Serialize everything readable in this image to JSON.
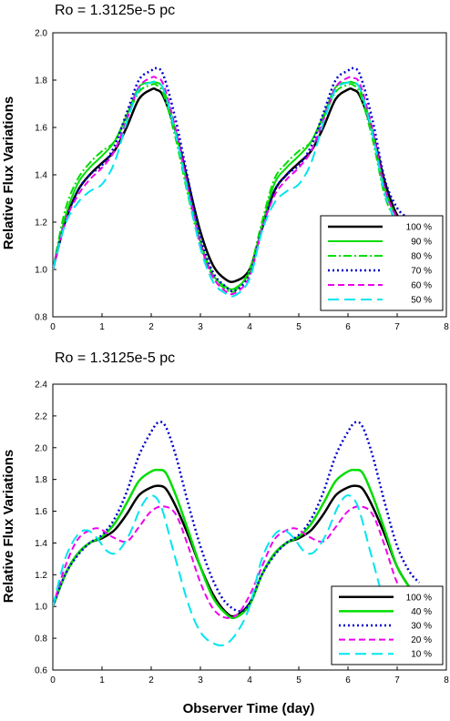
{
  "xlabel": "Observer Time (day)",
  "ylabel": "Relative Flux Variations",
  "chart_data": [
    {
      "type": "line",
      "title": "Ro = 1.3125e-5 pc",
      "xlim": [
        0,
        8
      ],
      "ylim": [
        0.8,
        2.0
      ],
      "xticks": [
        0,
        1,
        2,
        3,
        4,
        5,
        6,
        7,
        8
      ],
      "yticks": [
        0.8,
        1.0,
        1.2,
        1.4,
        1.6,
        1.8,
        2.0
      ],
      "legend_position": "lower-right",
      "x": [
        0,
        0.25,
        0.5,
        0.75,
        1.0,
        1.25,
        1.5,
        1.75,
        2.0,
        2.1,
        2.25,
        2.5,
        2.75,
        3.0,
        3.25,
        3.5,
        3.7,
        4.0,
        4.25,
        4.5,
        4.75,
        5.0,
        5.25,
        5.5,
        5.75,
        6.0,
        6.1,
        6.25,
        6.5,
        6.75,
        7.0,
        7.2
      ],
      "series": [
        {
          "name": "100 %",
          "color": "#000000",
          "dash": "solid",
          "width": 2.5,
          "values": [
            1.0,
            1.2,
            1.33,
            1.4,
            1.45,
            1.5,
            1.6,
            1.72,
            1.76,
            1.76,
            1.73,
            1.58,
            1.37,
            1.16,
            1.02,
            0.96,
            0.95,
            1.0,
            1.17,
            1.33,
            1.4,
            1.45,
            1.5,
            1.6,
            1.72,
            1.76,
            1.76,
            1.73,
            1.58,
            1.37,
            1.23,
            1.2
          ]
        },
        {
          "name": "90 %",
          "color": "#00dd00",
          "dash": "solid",
          "width": 2,
          "values": [
            1.0,
            1.22,
            1.36,
            1.43,
            1.48,
            1.54,
            1.65,
            1.77,
            1.79,
            1.79,
            1.76,
            1.58,
            1.34,
            1.12,
            0.98,
            0.93,
            0.92,
            0.99,
            1.18,
            1.36,
            1.43,
            1.48,
            1.54,
            1.65,
            1.77,
            1.79,
            1.79,
            1.76,
            1.58,
            1.34,
            1.22,
            1.2
          ]
        },
        {
          "name": "80 %",
          "color": "#00dd00",
          "dash": "dashdot",
          "width": 2,
          "values": [
            1.0,
            1.25,
            1.38,
            1.45,
            1.5,
            1.54,
            1.64,
            1.75,
            1.78,
            1.78,
            1.74,
            1.55,
            1.31,
            1.1,
            0.97,
            0.92,
            0.91,
            1.0,
            1.2,
            1.38,
            1.45,
            1.5,
            1.54,
            1.64,
            1.75,
            1.78,
            1.78,
            1.74,
            1.55,
            1.31,
            1.2,
            1.18
          ]
        },
        {
          "name": "70 %",
          "color": "#0000cc",
          "dash": "dot",
          "width": 2.5,
          "values": [
            1.0,
            1.2,
            1.33,
            1.4,
            1.44,
            1.52,
            1.66,
            1.8,
            1.84,
            1.85,
            1.82,
            1.63,
            1.38,
            1.14,
            0.99,
            0.93,
            0.91,
            0.98,
            1.17,
            1.33,
            1.4,
            1.44,
            1.52,
            1.66,
            1.8,
            1.84,
            1.85,
            1.82,
            1.63,
            1.38,
            1.26,
            1.22
          ]
        },
        {
          "name": "60 %",
          "color": "#ee00ee",
          "dash": "dash",
          "width": 2,
          "values": [
            1.0,
            1.2,
            1.31,
            1.38,
            1.43,
            1.5,
            1.63,
            1.77,
            1.81,
            1.81,
            1.78,
            1.59,
            1.34,
            1.11,
            0.97,
            0.91,
            0.9,
            0.97,
            1.17,
            1.31,
            1.38,
            1.43,
            1.5,
            1.63,
            1.77,
            1.81,
            1.81,
            1.78,
            1.59,
            1.34,
            1.22,
            1.2
          ]
        },
        {
          "name": "50 %",
          "color": "#00e5ee",
          "dash": "longdash",
          "width": 2,
          "values": [
            1.0,
            1.19,
            1.28,
            1.33,
            1.36,
            1.45,
            1.62,
            1.76,
            1.79,
            1.79,
            1.76,
            1.57,
            1.32,
            1.09,
            0.95,
            0.9,
            0.89,
            0.96,
            1.16,
            1.28,
            1.33,
            1.36,
            1.45,
            1.62,
            1.76,
            1.79,
            1.79,
            1.76,
            1.57,
            1.32,
            1.2,
            1.18
          ]
        }
      ]
    },
    {
      "type": "line",
      "title": "Ro = 1.3125e-5 pc",
      "xlim": [
        0,
        8
      ],
      "ylim": [
        0.6,
        2.4
      ],
      "xticks": [
        0,
        1,
        2,
        3,
        4,
        5,
        6,
        7,
        8
      ],
      "yticks": [
        0.6,
        0.8,
        1.0,
        1.2,
        1.4,
        1.6,
        1.8,
        2.0,
        2.2,
        2.4
      ],
      "legend_position": "lower-right",
      "series": [
        {
          "name": "100 %",
          "color": "#000000",
          "dash": "solid",
          "width": 2.5,
          "x": [
            0,
            0.25,
            0.5,
            0.75,
            1.0,
            1.25,
            1.5,
            1.75,
            2.0,
            2.15,
            2.3,
            2.5,
            2.75,
            3.0,
            3.25,
            3.5,
            3.7,
            4.0,
            4.25,
            4.5,
            4.75,
            5.0,
            5.25,
            5.5,
            5.75,
            6.0,
            6.15,
            6.3,
            6.5,
            6.75,
            7.0,
            7.25
          ],
          "values": [
            1.0,
            1.2,
            1.33,
            1.4,
            1.43,
            1.48,
            1.58,
            1.7,
            1.75,
            1.76,
            1.74,
            1.63,
            1.45,
            1.25,
            1.08,
            0.97,
            0.94,
            1.02,
            1.2,
            1.33,
            1.4,
            1.43,
            1.48,
            1.58,
            1.7,
            1.75,
            1.76,
            1.74,
            1.63,
            1.45,
            1.25,
            1.12
          ]
        },
        {
          "name": "40 %",
          "color": "#00dd00",
          "dash": "solid",
          "width": 2.5,
          "x": [
            0,
            0.25,
            0.5,
            0.75,
            1.0,
            1.25,
            1.5,
            1.75,
            2.0,
            2.15,
            2.3,
            2.5,
            2.75,
            3.0,
            3.25,
            3.5,
            3.7,
            4.0,
            4.25,
            4.5,
            4.75,
            5.0,
            5.25,
            5.5,
            5.75,
            6.0,
            6.15,
            6.3,
            6.5,
            6.75,
            7.0,
            7.25
          ],
          "values": [
            1.0,
            1.2,
            1.33,
            1.4,
            1.44,
            1.52,
            1.65,
            1.79,
            1.85,
            1.86,
            1.84,
            1.7,
            1.48,
            1.25,
            1.06,
            0.96,
            0.93,
            1.01,
            1.2,
            1.33,
            1.4,
            1.44,
            1.52,
            1.65,
            1.79,
            1.85,
            1.86,
            1.84,
            1.7,
            1.48,
            1.25,
            1.12
          ]
        },
        {
          "name": "30 %",
          "color": "#0000cc",
          "dash": "dot",
          "width": 2.5,
          "x": [
            0,
            0.25,
            0.5,
            0.75,
            1.0,
            1.25,
            1.5,
            1.75,
            2.0,
            2.15,
            2.3,
            2.5,
            2.75,
            3.0,
            3.25,
            3.5,
            3.8,
            4.0,
            4.25,
            4.5,
            4.75,
            5.0,
            5.25,
            5.5,
            5.75,
            6.0,
            6.15,
            6.3,
            6.5,
            6.75,
            7.0,
            7.25,
            7.45
          ],
          "values": [
            1.0,
            1.2,
            1.32,
            1.4,
            1.45,
            1.55,
            1.72,
            1.95,
            2.1,
            2.16,
            2.13,
            1.95,
            1.65,
            1.38,
            1.17,
            1.03,
            0.97,
            1.02,
            1.2,
            1.32,
            1.4,
            1.45,
            1.55,
            1.72,
            1.95,
            2.1,
            2.16,
            2.13,
            1.95,
            1.65,
            1.38,
            1.22,
            1.15
          ]
        },
        {
          "name": "20 %",
          "color": "#ee00ee",
          "dash": "dash",
          "width": 2,
          "x": [
            0,
            0.25,
            0.5,
            0.75,
            0.95,
            1.2,
            1.5,
            1.75,
            2.0,
            2.25,
            2.5,
            2.75,
            3.0,
            3.25,
            3.5,
            3.75,
            4.0,
            4.25,
            4.5,
            4.75,
            4.95,
            5.2,
            5.5,
            5.75,
            6.0,
            6.25,
            6.5,
            6.75,
            7.0,
            7.25
          ],
          "values": [
            1.0,
            1.25,
            1.42,
            1.48,
            1.49,
            1.44,
            1.41,
            1.5,
            1.6,
            1.63,
            1.58,
            1.38,
            1.15,
            0.99,
            0.93,
            0.95,
            1.07,
            1.25,
            1.42,
            1.48,
            1.49,
            1.44,
            1.41,
            1.5,
            1.6,
            1.63,
            1.58,
            1.38,
            1.15,
            1.05
          ]
        },
        {
          "name": "10 %",
          "color": "#00e5ee",
          "dash": "longdash",
          "width": 2,
          "x": [
            0,
            0.25,
            0.5,
            0.7,
            0.9,
            1.1,
            1.3,
            1.55,
            1.8,
            2.0,
            2.2,
            2.45,
            2.75,
            3.0,
            3.25,
            3.5,
            3.75,
            4.0,
            4.25,
            4.5,
            4.7,
            4.9,
            5.1,
            5.3,
            5.55,
            5.8,
            6.0,
            6.2,
            6.45,
            6.75,
            7.0
          ],
          "values": [
            1.0,
            1.3,
            1.45,
            1.48,
            1.43,
            1.35,
            1.34,
            1.45,
            1.63,
            1.7,
            1.63,
            1.35,
            1.02,
            0.84,
            0.77,
            0.76,
            0.84,
            1.0,
            1.3,
            1.45,
            1.48,
            1.43,
            1.35,
            1.34,
            1.45,
            1.63,
            1.7,
            1.63,
            1.35,
            1.02,
            0.88
          ]
        }
      ]
    }
  ]
}
